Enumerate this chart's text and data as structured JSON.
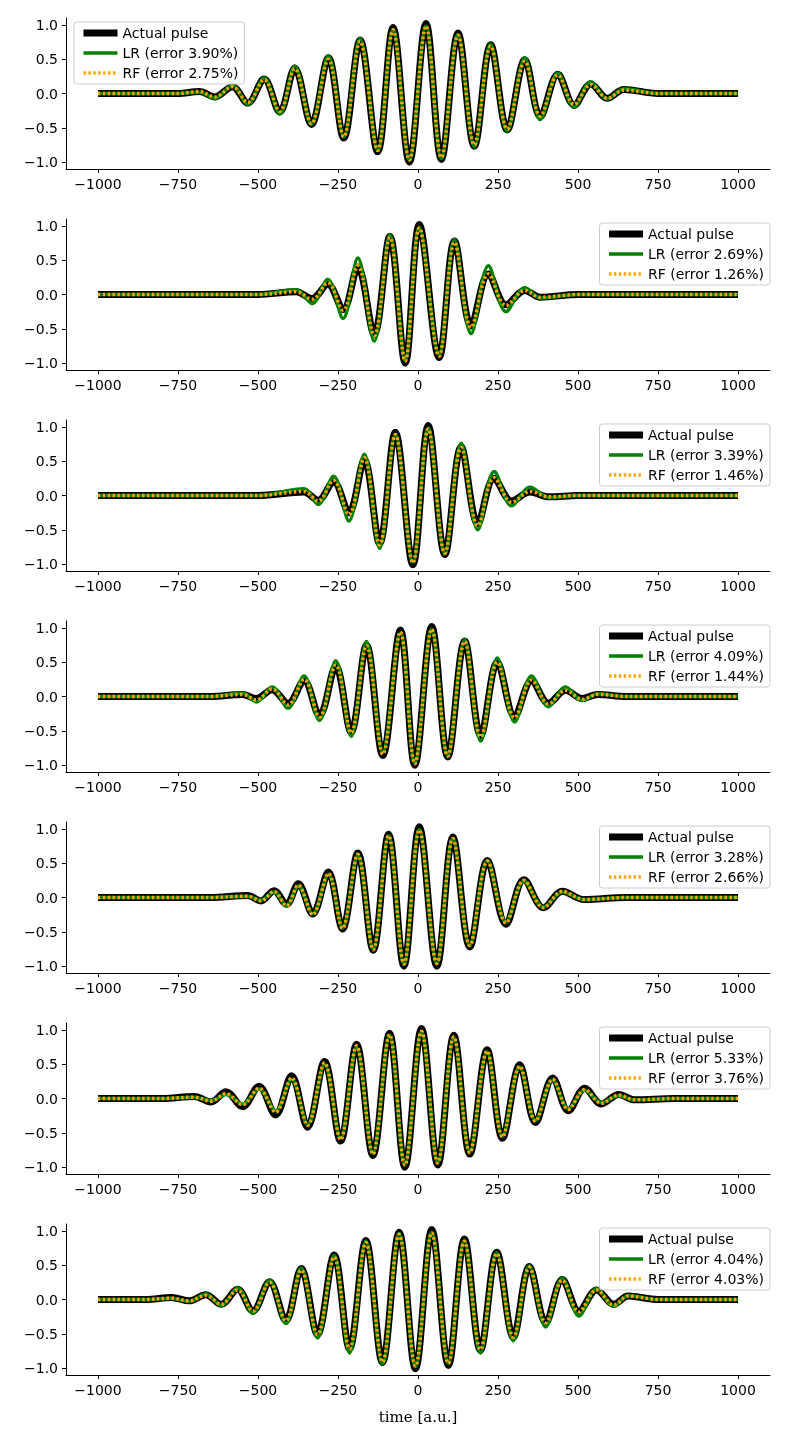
{
  "chart_data": [
    {
      "type": "line",
      "legend": "top left",
      "xlim": [
        -1100,
        1100
      ],
      "ylim": [
        -1.1,
        1.1
      ],
      "xticks": [
        {
          "value": -1000,
          "label": "−1000"
        },
        {
          "value": -750,
          "label": "−750"
        },
        {
          "value": -500,
          "label": "−500"
        },
        {
          "value": -250,
          "label": "−250"
        },
        0,
        250,
        500,
        750,
        1000
      ],
      "yticks": [
        {
          "value": -1,
          "label": "−1.0"
        },
        {
          "value": -0.5,
          "label": "−0.5"
        },
        {
          "value": 0,
          "label": "0.0"
        },
        {
          "value": 0.5,
          "label": "0.5"
        },
        {
          "value": 1,
          "label": "1.0"
        }
      ],
      "x": [
        -1000,
        -750,
        -683,
        -635,
        -580,
        -532,
        -481,
        -432,
        -385,
        -333,
        -280,
        -232,
        -181,
        -126,
        -78,
        -27,
        25,
        73,
        125,
        176,
        227,
        279,
        334,
        382,
        437,
        488,
        540,
        592,
        643,
        750,
        1000
      ],
      "series": [
        {
          "name": "Actual pulse",
          "color": "#000000",
          "line_style": "solid",
          "values": [
            0,
            0,
            0.03,
            -0.05,
            0.1,
            -0.14,
            0.21,
            -0.27,
            0.37,
            -0.45,
            0.52,
            -0.65,
            0.78,
            -0.85,
            0.96,
            -1.0,
            1.02,
            -0.96,
            0.88,
            -0.77,
            0.71,
            -0.53,
            0.49,
            -0.34,
            0.28,
            -0.17,
            0.14,
            -0.07,
            0.06,
            0,
            0
          ]
        },
        {
          "name": "LR (error 3.90%)",
          "color": "#008000",
          "line_style": "solid",
          "values": [
            0,
            0,
            0.02,
            -0.07,
            0.12,
            -0.16,
            0.23,
            -0.3,
            0.4,
            -0.45,
            0.55,
            -0.63,
            0.8,
            -0.83,
            0.93,
            -0.97,
            0.98,
            -0.95,
            0.86,
            -0.78,
            0.72,
            -0.55,
            0.52,
            -0.38,
            0.3,
            -0.2,
            0.17,
            -0.08,
            0.07,
            0,
            0
          ]
        },
        {
          "name": "RF (error 2.75%)",
          "color": "#ffa500",
          "line_style": "dotted",
          "values": [
            0,
            0,
            0.03,
            -0.05,
            0.1,
            -0.13,
            0.2,
            -0.26,
            0.36,
            -0.44,
            0.5,
            -0.63,
            0.76,
            -0.83,
            0.93,
            -0.97,
            0.98,
            -0.93,
            0.85,
            -0.75,
            0.69,
            -0.52,
            0.47,
            -0.33,
            0.27,
            -0.16,
            0.13,
            -0.07,
            0.05,
            0,
            0
          ]
        }
      ]
    },
    {
      "type": "line",
      "legend": "top right",
      "xlim": [
        -1100,
        1100
      ],
      "ylim": [
        -1.1,
        1.1
      ],
      "xticks": [
        {
          "value": -1000,
          "label": "−1000"
        },
        {
          "value": -750,
          "label": "−750"
        },
        {
          "value": -500,
          "label": "−500"
        },
        {
          "value": -250,
          "label": "−250"
        },
        0,
        250,
        500,
        750,
        1000
      ],
      "yticks": [
        {
          "value": -1,
          "label": "−1.0"
        },
        {
          "value": -0.5,
          "label": "−0.5"
        },
        {
          "value": 0,
          "label": "0.0"
        },
        {
          "value": 0.5,
          "label": "0.5"
        },
        {
          "value": 1,
          "label": "1.0"
        }
      ],
      "x": [
        -1000,
        -500,
        -381,
        -331,
        -282,
        -234,
        -188,
        -137,
        -88,
        -40,
        4,
        66,
        114,
        166,
        220,
        275,
        334,
        382,
        500,
        1000
      ],
      "series": [
        {
          "name": "Actual pulse",
          "color": "#000000",
          "line_style": "solid",
          "values": [
            0,
            0,
            0.04,
            -0.06,
            0.15,
            -0.22,
            0.4,
            -0.58,
            0.85,
            -1.0,
            1.02,
            -0.92,
            0.78,
            -0.46,
            0.3,
            -0.15,
            0.06,
            -0.04,
            0,
            0
          ]
        },
        {
          "name": "LR (error 2.69%)",
          "color": "#008000",
          "line_style": "solid",
          "values": [
            0,
            0,
            0.07,
            -0.13,
            0.22,
            -0.35,
            0.53,
            -0.68,
            0.87,
            -0.96,
            0.98,
            -0.88,
            0.8,
            -0.57,
            0.42,
            -0.25,
            0.1,
            -0.05,
            0,
            0
          ]
        },
        {
          "name": "RF (error 1.26%)",
          "color": "#ffa500",
          "line_style": "dotted",
          "values": [
            0,
            0,
            0.04,
            -0.07,
            0.17,
            -0.23,
            0.42,
            -0.6,
            0.83,
            -0.97,
            0.97,
            -0.9,
            0.76,
            -0.48,
            0.3,
            -0.16,
            0.06,
            -0.04,
            0,
            0
          ]
        }
      ]
    },
    {
      "type": "line",
      "legend": "top right",
      "xlim": [
        -1100,
        1100
      ],
      "ylim": [
        -1.1,
        1.1
      ],
      "xticks": [
        {
          "value": -1000,
          "label": "−1000"
        },
        {
          "value": -750,
          "label": "−750"
        },
        {
          "value": -500,
          "label": "−500"
        },
        {
          "value": -250,
          "label": "−250"
        },
        0,
        250,
        500,
        750,
        1000
      ],
      "yticks": [
        {
          "value": -1,
          "label": "−1.0"
        },
        {
          "value": -0.5,
          "label": "−0.5"
        },
        {
          "value": 0,
          "label": "0.0"
        },
        {
          "value": 0.5,
          "label": "0.5"
        },
        {
          "value": 1,
          "label": "1.0"
        }
      ],
      "x": [
        -1000,
        -500,
        -357,
        -312,
        -264,
        -216,
        -168,
        -120,
        -71,
        -16,
        32,
        84,
        135,
        187,
        238,
        293,
        350,
        410,
        500,
        1000
      ],
      "series": [
        {
          "name": "Actual pulse",
          "color": "#000000",
          "line_style": "solid",
          "values": [
            0,
            0,
            0.05,
            -0.07,
            0.2,
            -0.25,
            0.52,
            -0.7,
            0.92,
            -1.01,
            1.02,
            -0.86,
            0.71,
            -0.41,
            0.25,
            -0.08,
            0.05,
            -0.02,
            0,
            0
          ]
        },
        {
          "name": "LR (error 3.39%)",
          "color": "#008000",
          "line_style": "solid",
          "values": [
            0,
            0,
            0.1,
            -0.13,
            0.28,
            -0.37,
            0.6,
            -0.77,
            0.89,
            -0.97,
            0.98,
            -0.85,
            0.76,
            -0.5,
            0.35,
            -0.15,
            0.12,
            -0.03,
            0,
            0
          ]
        },
        {
          "name": "RF (error 1.46%)",
          "color": "#ffa500",
          "line_style": "dotted",
          "values": [
            0,
            0,
            0.06,
            -0.08,
            0.22,
            -0.28,
            0.55,
            -0.72,
            0.89,
            -0.98,
            0.97,
            -0.84,
            0.7,
            -0.44,
            0.26,
            -0.1,
            0.06,
            -0.02,
            0,
            0
          ]
        }
      ]
    },
    {
      "type": "line",
      "legend": "top right",
      "xlim": [
        -1100,
        1100
      ],
      "ylim": [
        -1.1,
        1.1
      ],
      "xticks": [
        {
          "value": -1000,
          "label": "−1000"
        },
        {
          "value": -750,
          "label": "−750"
        },
        {
          "value": -500,
          "label": "−500"
        },
        {
          "value": -250,
          "label": "−250"
        },
        0,
        250,
        500,
        750,
        1000
      ],
      "yticks": [
        {
          "value": -1,
          "label": "−1.0"
        },
        {
          "value": -0.5,
          "label": "−0.5"
        },
        {
          "value": 0,
          "label": "0.0"
        },
        {
          "value": 0.5,
          "label": "0.5"
        },
        {
          "value": 1,
          "label": "1.0"
        }
      ],
      "x": [
        -1000,
        -650,
        -548,
        -505,
        -456,
        -406,
        -356,
        -308,
        -257,
        -209,
        -161,
        -110,
        -55,
        -10,
        43,
        93,
        146,
        196,
        248,
        302,
        355,
        408,
        461,
        513,
        561,
        650,
        1000
      ],
      "series": [
        {
          "name": "Actual pulse",
          "color": "#000000",
          "line_style": "solid",
          "values": [
            0,
            0,
            0.03,
            -0.03,
            0.1,
            -0.1,
            0.23,
            -0.28,
            0.44,
            -0.52,
            0.75,
            -0.86,
            0.97,
            -1.0,
            1.02,
            -0.88,
            0.81,
            -0.57,
            0.5,
            -0.29,
            0.23,
            -0.1,
            0.09,
            -0.03,
            0.03,
            0,
            0
          ]
        },
        {
          "name": "LR (error 4.09%)",
          "color": "#008000",
          "line_style": "solid",
          "values": [
            0,
            0,
            0.05,
            -0.08,
            0.14,
            -0.17,
            0.3,
            -0.35,
            0.52,
            -0.58,
            0.8,
            -0.82,
            0.93,
            -0.97,
            0.98,
            -0.86,
            0.83,
            -0.65,
            0.56,
            -0.37,
            0.3,
            -0.15,
            0.14,
            -0.06,
            0.04,
            0,
            0
          ]
        },
        {
          "name": "RF (error 1.44%)",
          "color": "#ffa500",
          "line_style": "dotted",
          "values": [
            0,
            0,
            0.03,
            -0.05,
            0.11,
            -0.12,
            0.25,
            -0.3,
            0.46,
            -0.53,
            0.74,
            -0.84,
            0.94,
            -0.98,
            0.98,
            -0.87,
            0.8,
            -0.59,
            0.5,
            -0.31,
            0.24,
            -0.11,
            0.09,
            -0.04,
            0.03,
            0,
            0
          ]
        }
      ]
    },
    {
      "type": "line",
      "legend": "top right",
      "xlim": [
        -1100,
        1100
      ],
      "ylim": [
        -1.1,
        1.1
      ],
      "xticks": [
        {
          "value": -1000,
          "label": "−1000"
        },
        {
          "value": -750,
          "label": "−750"
        },
        {
          "value": -500,
          "label": "−500"
        },
        {
          "value": -250,
          "label": "−250"
        },
        0,
        250,
        500,
        750,
        1000
      ],
      "yticks": [
        {
          "value": -1,
          "label": "−1.0"
        },
        {
          "value": -0.5,
          "label": "−0.5"
        },
        {
          "value": 0,
          "label": "0.0"
        },
        {
          "value": 0.5,
          "label": "0.5"
        },
        {
          "value": 1,
          "label": "1.0"
        }
      ],
      "x": [
        -1000,
        -650,
        -532,
        -491,
        -450,
        -411,
        -374,
        -329,
        -280,
        -236,
        -188,
        -140,
        -92,
        -44,
        4,
        59,
        109,
        162,
        217,
        275,
        331,
        392,
        451,
        519,
        650,
        1000
      ],
      "series": [
        {
          "name": "Actual pulse",
          "color": "#000000",
          "line_style": "solid",
          "values": [
            0,
            0,
            0.03,
            -0.05,
            0.1,
            -0.1,
            0.2,
            -0.24,
            0.37,
            -0.46,
            0.65,
            -0.77,
            0.92,
            -1.0,
            1.03,
            -1.0,
            0.88,
            -0.72,
            0.54,
            -0.39,
            0.26,
            -0.15,
            0.09,
            -0.03,
            0,
            0
          ]
        },
        {
          "name": "LR (error 3.28%)",
          "color": "#008000",
          "line_style": "solid",
          "values": [
            0,
            0,
            0.02,
            -0.04,
            0.08,
            -0.12,
            0.17,
            -0.24,
            0.34,
            -0.44,
            0.62,
            -0.75,
            0.9,
            -0.97,
            0.99,
            -0.96,
            0.86,
            -0.7,
            0.54,
            -0.36,
            0.24,
            -0.14,
            0.08,
            -0.03,
            0,
            0
          ]
        },
        {
          "name": "RF (error 2.66%)",
          "color": "#ffa500",
          "line_style": "dotted",
          "values": [
            0,
            0,
            0.02,
            -0.05,
            0.09,
            -0.12,
            0.18,
            -0.25,
            0.35,
            -0.45,
            0.63,
            -0.76,
            0.9,
            -0.97,
            0.98,
            -0.96,
            0.86,
            -0.7,
            0.53,
            -0.37,
            0.25,
            -0.15,
            0.09,
            -0.03,
            0,
            0
          ]
        }
      ]
    },
    {
      "type": "line",
      "legend": "top right",
      "xlim": [
        -1100,
        1100
      ],
      "ylim": [
        -1.1,
        1.1
      ],
      "xticks": [
        {
          "value": -1000,
          "label": "−1000"
        },
        {
          "value": -750,
          "label": "−750"
        },
        {
          "value": -500,
          "label": "−500"
        },
        {
          "value": -250,
          "label": "−250"
        },
        0,
        250,
        500,
        750,
        1000
      ],
      "yticks": [
        {
          "value": -1,
          "label": "−1.0"
        },
        {
          "value": -0.5,
          "label": "−0.5"
        },
        {
          "value": 0,
          "label": "0.0"
        },
        {
          "value": 0.5,
          "label": "0.5"
        },
        {
          "value": 1,
          "label": "1.0"
        }
      ],
      "x": [
        -1000,
        -800,
        -699,
        -647,
        -600,
        -548,
        -497,
        -445,
        -395,
        -345,
        -292,
        -242,
        -192,
        -141,
        -89,
        -41,
        11,
        62,
        112,
        162,
        216,
        264,
        318,
        367,
        421,
        470,
        521,
        573,
        627,
        678,
        800,
        1000
      ],
      "series": [
        {
          "name": "Actual pulse",
          "color": "#000000",
          "line_style": "solid",
          "values": [
            0,
            0,
            0.03,
            -0.05,
            0.1,
            -0.12,
            0.18,
            -0.24,
            0.33,
            -0.42,
            0.54,
            -0.62,
            0.79,
            -0.83,
            0.95,
            -1.0,
            1.02,
            -0.97,
            0.92,
            -0.81,
            0.71,
            -0.58,
            0.49,
            -0.35,
            0.3,
            -0.18,
            0.15,
            -0.08,
            0.06,
            -0.02,
            0,
            0
          ]
        },
        {
          "name": "LR (error 5.33%)",
          "color": "#008000",
          "line_style": "solid",
          "values": [
            0,
            0,
            0.02,
            -0.03,
            0.06,
            -0.08,
            0.14,
            -0.18,
            0.28,
            -0.38,
            0.5,
            -0.58,
            0.75,
            -0.8,
            0.92,
            -0.96,
            0.97,
            -0.93,
            0.89,
            -0.78,
            0.68,
            -0.55,
            0.46,
            -0.32,
            0.27,
            -0.15,
            0.12,
            -0.06,
            0.04,
            -0.02,
            0,
            0
          ]
        },
        {
          "name": "RF (error 3.76%)",
          "color": "#ffa500",
          "line_style": "dotted",
          "values": [
            0,
            0,
            0.02,
            -0.04,
            0.07,
            -0.09,
            0.15,
            -0.2,
            0.3,
            -0.39,
            0.52,
            -0.6,
            0.77,
            -0.81,
            0.93,
            -0.97,
            0.98,
            -0.94,
            0.9,
            -0.79,
            0.69,
            -0.56,
            0.47,
            -0.33,
            0.28,
            -0.16,
            0.13,
            -0.07,
            0.05,
            -0.02,
            0,
            0
          ]
        }
      ]
    },
    {
      "type": "line",
      "legend": "top right",
      "xlabel": "time [a.u.]",
      "xlim": [
        -1100,
        1100
      ],
      "ylim": [
        -1.1,
        1.1
      ],
      "xticks": [
        {
          "value": -1000,
          "label": "−1000"
        },
        {
          "value": -750,
          "label": "−750"
        },
        {
          "value": -500,
          "label": "−500"
        },
        {
          "value": -250,
          "label": "−250"
        },
        0,
        250,
        500,
        750,
        1000
      ],
      "yticks": [
        {
          "value": -1,
          "label": "−1.0"
        },
        {
          "value": -0.5,
          "label": "−0.5"
        },
        {
          "value": 0,
          "label": "0.0"
        },
        {
          "value": 0.5,
          "label": "0.5"
        },
        {
          "value": 1,
          "label": "1.0"
        }
      ],
      "x": [
        -1000,
        -850,
        -770,
        -715,
        -663,
        -615,
        -564,
        -516,
        -464,
        -413,
        -365,
        -314,
        -262,
        -214,
        -163,
        -111,
        -59,
        -8,
        43,
        95,
        145,
        195,
        246,
        298,
        348,
        399,
        451,
        503,
        558,
        612,
        657,
        750,
        1000
      ],
      "series": [
        {
          "name": "Actual pulse",
          "color": "#000000",
          "line_style": "solid",
          "values": [
            0,
            0,
            0.03,
            -0.02,
            0.07,
            -0.07,
            0.15,
            -0.17,
            0.26,
            -0.31,
            0.45,
            -0.51,
            0.65,
            -0.72,
            0.86,
            -0.92,
            0.98,
            -1.01,
            1.02,
            -0.96,
            0.88,
            -0.74,
            0.69,
            -0.55,
            0.48,
            -0.34,
            0.29,
            -0.17,
            0.14,
            -0.07,
            0.05,
            0,
            0
          ]
        },
        {
          "name": "LR (error 4.04%)",
          "color": "#008000",
          "line_style": "solid",
          "values": [
            0,
            0,
            0.02,
            -0.03,
            0.08,
            -0.09,
            0.17,
            -0.2,
            0.28,
            -0.35,
            0.46,
            -0.56,
            0.64,
            -0.78,
            0.85,
            -0.94,
            0.96,
            -0.98,
            0.98,
            -0.93,
            0.86,
            -0.78,
            0.68,
            -0.6,
            0.49,
            -0.4,
            0.31,
            -0.24,
            0.16,
            -0.1,
            0.06,
            0,
            0
          ]
        },
        {
          "name": "RF (error 4.03%)",
          "color": "#ffa500",
          "line_style": "dotted",
          "values": [
            0,
            0,
            0.02,
            -0.02,
            0.06,
            -0.07,
            0.14,
            -0.17,
            0.25,
            -0.31,
            0.43,
            -0.51,
            0.62,
            -0.72,
            0.83,
            -0.91,
            0.95,
            -0.97,
            0.97,
            -0.93,
            0.85,
            -0.73,
            0.67,
            -0.55,
            0.47,
            -0.34,
            0.28,
            -0.18,
            0.14,
            -0.08,
            0.05,
            0,
            0
          ]
        }
      ]
    }
  ]
}
